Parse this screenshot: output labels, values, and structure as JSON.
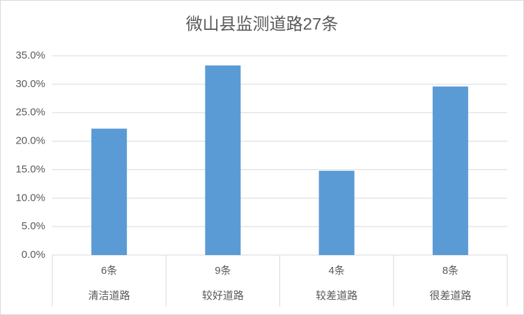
{
  "chart_data": {
    "type": "bar",
    "title": "微山县监测道路27条",
    "categories": [
      "清洁道路",
      "较好道路",
      "较差道路",
      "很差道路"
    ],
    "sublabels": [
      "6条",
      "9条",
      "4条",
      "8条"
    ],
    "values": [
      22.2,
      33.3,
      14.8,
      29.6
    ],
    "color": "#5b9bd5",
    "ylim": [
      0,
      35
    ],
    "yticks": [
      {
        "value": 0,
        "label": "0.0%"
      },
      {
        "value": 5,
        "label": "5.0%"
      },
      {
        "value": 10,
        "label": "10.0%"
      },
      {
        "value": 15,
        "label": "15.0%"
      },
      {
        "value": 20,
        "label": "20.0%"
      },
      {
        "value": 25,
        "label": "25.0%"
      },
      {
        "value": 30,
        "label": "30.0%"
      },
      {
        "value": 35,
        "label": "35.0%"
      }
    ],
    "grid": true
  }
}
